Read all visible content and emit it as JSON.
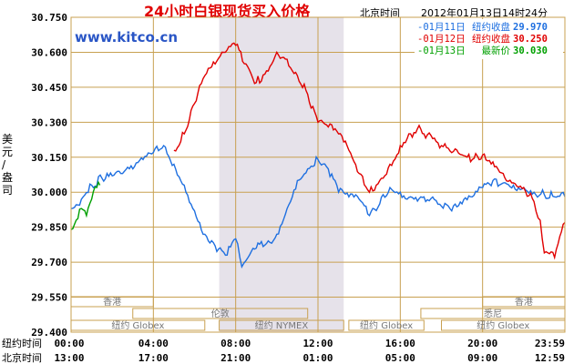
{
  "header": {
    "title": "24小时白银现货买入价格",
    "timezone_label": "北京时间",
    "timestamp": "2012年01月13日14时24分"
  },
  "site_url": "www.kitco.cn",
  "legend": [
    {
      "label": "-01月11日",
      "desc": "纽约收盘",
      "value": "29.970",
      "color": "#1e6fe0"
    },
    {
      "label": "-01月12日",
      "desc": "纽约收盘",
      "value": "30.250",
      "color": "#e00000"
    },
    {
      "label": "-01月13日",
      "desc": "最新价",
      "value": "30.030",
      "color": "#00a000"
    }
  ],
  "x_rows": {
    "ny_label": "纽约时间",
    "bj_label": "北京时间",
    "ny_ticks": [
      "00:00",
      "04:00",
      "08:00",
      "12:00",
      "16:00",
      "20:00",
      "23:59"
    ],
    "bj_ticks": [
      "13:00",
      "17:00",
      "21:00",
      "01:00",
      "05:00",
      "09:00",
      "12:59"
    ]
  },
  "sessions": [
    {
      "name": "香港",
      "row": 0,
      "start": 0,
      "end": 4
    },
    {
      "name": "香港",
      "row": 0,
      "start": 20,
      "end": 24
    },
    {
      "name": "伦敦",
      "row": 1,
      "start": 3,
      "end": 11.5
    },
    {
      "name": "悉尼",
      "row": 1,
      "start": 17,
      "end": 24
    },
    {
      "name": "纽约 Globex",
      "row": 2,
      "start": 0,
      "end": 6.5
    },
    {
      "name": "纽约 NYMEX",
      "row": 2,
      "start": 7.2,
      "end": 13.25
    },
    {
      "name": "纽约 Globex",
      "row": 2,
      "start": 13.5,
      "end": 17.15
    },
    {
      "name": "纽约 Globex",
      "row": 2,
      "start": 18,
      "end": 24
    }
  ],
  "chart_data": {
    "type": "line",
    "title": "24小时白银现货买入价格",
    "ylabel": "美元/盎司",
    "xlabel": "",
    "x_unit": "纽约时间 (小时)",
    "xlim": [
      0,
      24
    ],
    "ylim": [
      29.4,
      30.75
    ],
    "yticks": [
      29.4,
      29.55,
      29.7,
      29.85,
      30.0,
      30.15,
      30.3,
      30.45,
      30.6,
      30.75
    ],
    "grid": true,
    "legend_position": "top-right",
    "highlight_x_range": [
      7.2,
      13.25
    ],
    "series": [
      {
        "name": "01月11日",
        "color": "#1e6fe0",
        "x": [
          0,
          0.5,
          1,
          1.5,
          2,
          2.5,
          3,
          3.5,
          4,
          4.5,
          5,
          5.5,
          6,
          6.5,
          7,
          7.5,
          8,
          8.3,
          8.6,
          9,
          9.5,
          10,
          10.5,
          11,
          11.5,
          12,
          12.5,
          13,
          13.5,
          14,
          14.5,
          15,
          15.5,
          16,
          16.5,
          17,
          17.15,
          18,
          18.5,
          19,
          19.5,
          20,
          20.5,
          21,
          21.5,
          22,
          22.5,
          23,
          23.5,
          24
        ],
        "y": [
          29.93,
          29.97,
          30.03,
          30.06,
          30.07,
          30.08,
          30.1,
          30.14,
          30.17,
          30.2,
          30.12,
          30.03,
          29.92,
          29.82,
          29.77,
          29.73,
          29.8,
          29.68,
          29.72,
          29.76,
          29.78,
          29.82,
          29.93,
          30.05,
          30.1,
          30.14,
          30.1,
          30.0,
          29.98,
          29.97,
          29.9,
          29.95,
          30.02,
          30.0,
          29.98,
          29.98,
          29.98,
          29.94,
          29.92,
          29.95,
          29.98,
          30.02,
          30.05,
          30.04,
          30.03,
          30.02,
          30.0,
          29.99,
          29.98,
          29.98
        ]
      },
      {
        "name": "01月12日",
        "color": "#e00000",
        "x": [
          5,
          5.5,
          6,
          6.5,
          7,
          7.5,
          8,
          8.5,
          9,
          9.5,
          10,
          10.5,
          11,
          11.5,
          12,
          12.5,
          13,
          13.5,
          14,
          14.5,
          15,
          15.5,
          16,
          16.5,
          17,
          17.15,
          18,
          18.5,
          19,
          19.5,
          20,
          20.5,
          21,
          21.5,
          22,
          22.5,
          22.8,
          23,
          23.5,
          24
        ],
        "y": [
          30.18,
          30.25,
          30.38,
          30.5,
          30.55,
          30.6,
          30.63,
          30.55,
          30.47,
          30.52,
          30.6,
          30.57,
          30.5,
          30.42,
          30.3,
          30.28,
          30.25,
          30.18,
          30.08,
          30.0,
          30.05,
          30.12,
          30.2,
          30.25,
          30.27,
          30.25,
          30.2,
          30.17,
          30.16,
          30.14,
          30.16,
          30.13,
          30.08,
          30.04,
          30.02,
          29.96,
          29.88,
          29.74,
          29.72,
          29.87
        ]
      },
      {
        "name": "01月13日",
        "color": "#00a000",
        "x": [
          0,
          0.25,
          0.5,
          0.75,
          1.0,
          1.25,
          1.4
        ],
        "y": [
          29.84,
          29.88,
          29.93,
          29.9,
          29.97,
          30.02,
          30.03
        ]
      }
    ]
  }
}
